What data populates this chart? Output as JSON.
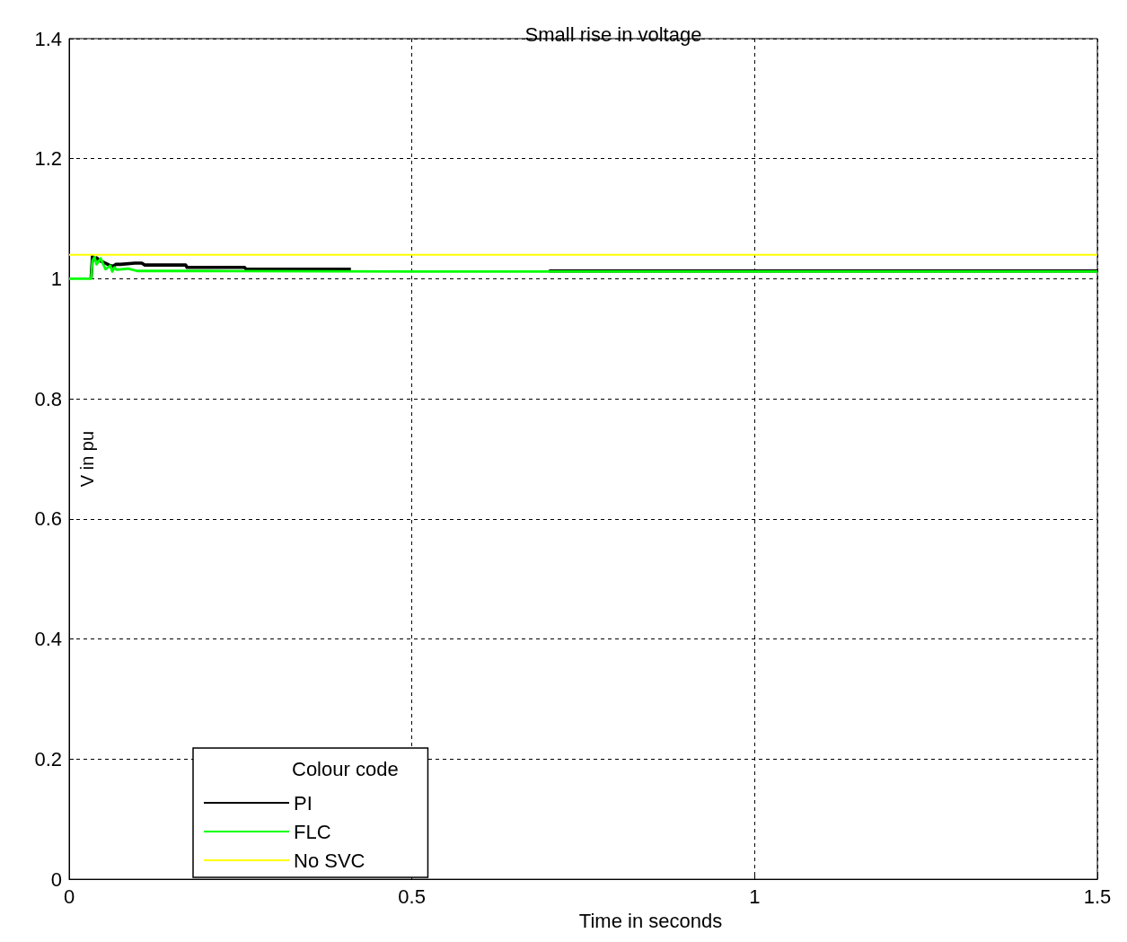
{
  "chart_data": {
    "type": "line",
    "title": "Small rise in voltage",
    "xlabel": "Time in seconds",
    "ylabel": "V in pu",
    "legend_title": "Colour code",
    "xlim": [
      0,
      1.5
    ],
    "xticks": [
      0,
      0.5,
      1,
      1.5
    ],
    "ylim": [
      0,
      1.4
    ],
    "yticks": [
      0,
      0.2,
      0.4,
      0.6,
      0.8,
      1,
      1.2,
      1.4
    ],
    "grid": true,
    "legend": "bottom left",
    "line_style": "solid",
    "marker": "none",
    "series": [
      {
        "name": "PI",
        "color": "#000000",
        "x": [
          0.032,
          0.034,
          0.037,
          0.04,
          0.045,
          0.053,
          0.06,
          0.064,
          0.068,
          0.075,
          0.096,
          0.106,
          0.11,
          0.17,
          0.172,
          0.256,
          0.258,
          0.411,
          0.42,
          0.695,
          0.7,
          1.5
        ],
        "values": [
          1.0,
          1.038,
          1.032,
          1.035,
          1.03,
          1.026,
          1.022,
          1.021,
          1.024,
          1.024,
          1.026,
          1.026,
          1.023,
          1.023,
          1.019,
          1.019,
          1.016,
          1.016,
          null,
          null,
          1.013,
          1.013
        ]
      },
      {
        "name": "FLC",
        "color": "#00ff00",
        "x": [
          0,
          0.032,
          0.034,
          0.037,
          0.04,
          0.046,
          0.053,
          0.06,
          0.063,
          0.066,
          0.069,
          0.078,
          0.086,
          0.099,
          0.2,
          0.5,
          1.0,
          1.5
        ],
        "values": [
          1.0,
          1.0,
          1.03,
          1.036,
          1.024,
          1.034,
          1.016,
          1.022,
          1.012,
          1.019,
          1.015,
          1.016,
          1.017,
          1.013,
          1.013,
          1.012,
          1.012,
          1.012
        ]
      },
      {
        "name": "No SVC",
        "color": "#ffff00",
        "x": [
          0,
          1.5
        ],
        "values": [
          1.04,
          1.04
        ]
      }
    ]
  }
}
